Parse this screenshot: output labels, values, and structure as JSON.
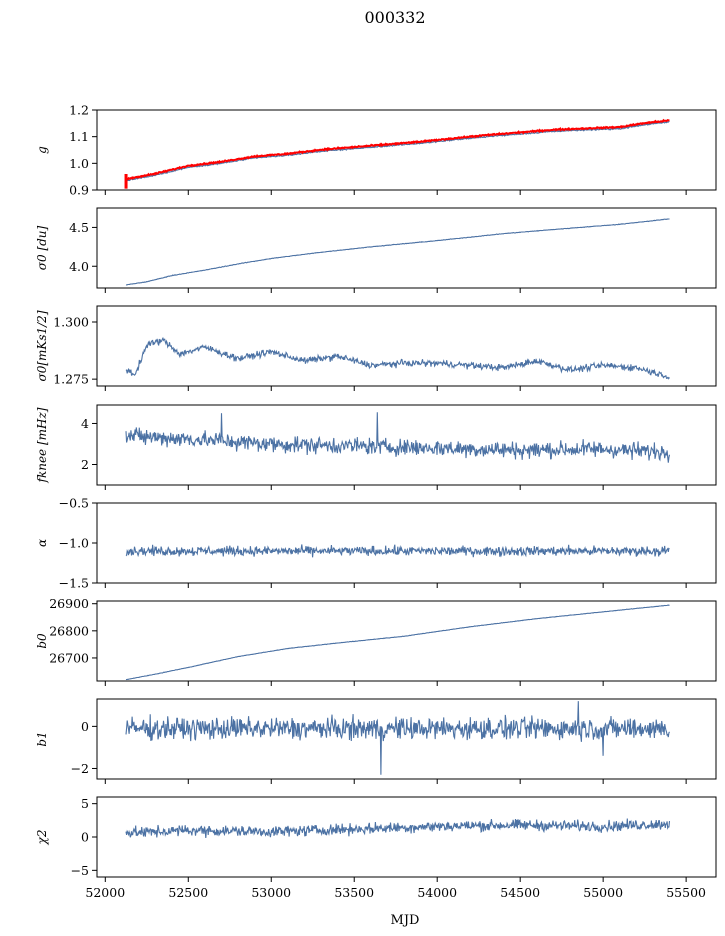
{
  "title": "000332",
  "chart_data": {
    "type": "line",
    "xlabel": "MJD",
    "xlim": [
      51950,
      55680
    ],
    "xticks": [
      52000,
      52500,
      53000,
      53500,
      54000,
      54500,
      55000,
      55500
    ],
    "xtick_labels": [
      "52000",
      "52500",
      "53000",
      "53500",
      "54000",
      "54500",
      "55000",
      "55500"
    ],
    "x_range": [
      52125,
      55400
    ],
    "colors": {
      "line": "#4c72a4",
      "overlay": "#ff0000"
    },
    "panels": [
      {
        "ylabel": "g",
        "ylim": [
          0.9,
          1.2
        ],
        "yticks": [
          0.9,
          1.0,
          1.1,
          1.2
        ],
        "ytick_labels": [
          "0.9",
          "1.0",
          "1.1",
          "1.2"
        ],
        "trend": [
          [
            52125,
            0.935
          ],
          [
            52300,
            0.955
          ],
          [
            52500,
            0.985
          ],
          [
            52700,
            1.0
          ],
          [
            52900,
            1.02
          ],
          [
            53100,
            1.03
          ],
          [
            53300,
            1.045
          ],
          [
            53500,
            1.055
          ],
          [
            53700,
            1.065
          ],
          [
            53900,
            1.075
          ],
          [
            54100,
            1.088
          ],
          [
            54300,
            1.1
          ],
          [
            54500,
            1.11
          ],
          [
            54700,
            1.12
          ],
          [
            54900,
            1.125
          ],
          [
            55100,
            1.13
          ],
          [
            55250,
            1.145
          ],
          [
            55400,
            1.155
          ]
        ],
        "noise": 0.002,
        "overlay": {
          "offset": 0.006,
          "spike": [
            52125,
            0.905,
            0.96
          ]
        }
      },
      {
        "ylabel": "σ0 [du]",
        "ylim": [
          3.72,
          4.75
        ],
        "yticks": [
          4.0,
          4.5
        ],
        "ytick_labels": [
          "4.0",
          "4.5"
        ],
        "trend": [
          [
            52125,
            3.76
          ],
          [
            52250,
            3.8
          ],
          [
            52400,
            3.88
          ],
          [
            52600,
            3.95
          ],
          [
            52800,
            4.03
          ],
          [
            53000,
            4.1
          ],
          [
            53300,
            4.18
          ],
          [
            53600,
            4.25
          ],
          [
            54000,
            4.33
          ],
          [
            54400,
            4.42
          ],
          [
            54800,
            4.49
          ],
          [
            55100,
            4.54
          ],
          [
            55400,
            4.61
          ]
        ],
        "noise": 0.003
      },
      {
        "ylabel": "σ0[mKs1/2]",
        "ylim": [
          1.272,
          1.307
        ],
        "yticks": [
          1.275,
          1.3
        ],
        "ytick_labels": [
          "1.275",
          "1.300"
        ],
        "trend": [
          [
            52125,
            1.279
          ],
          [
            52180,
            1.277
          ],
          [
            52250,
            1.29
          ],
          [
            52350,
            1.292
          ],
          [
            52450,
            1.286
          ],
          [
            52600,
            1.289
          ],
          [
            52800,
            1.284
          ],
          [
            53000,
            1.287
          ],
          [
            53200,
            1.283
          ],
          [
            53400,
            1.285
          ],
          [
            53600,
            1.281
          ],
          [
            53800,
            1.282
          ],
          [
            54000,
            1.282
          ],
          [
            54200,
            1.281
          ],
          [
            54400,
            1.28
          ],
          [
            54600,
            1.283
          ],
          [
            54800,
            1.279
          ],
          [
            55000,
            1.281
          ],
          [
            55200,
            1.28
          ],
          [
            55400,
            1.276
          ]
        ],
        "noise": 0.0012
      },
      {
        "ylabel": "fknee [mHz]",
        "ylim": [
          1.0,
          4.9
        ],
        "yticks": [
          2,
          4
        ],
        "ytick_labels": [
          "2",
          "4"
        ],
        "trend": [
          [
            52125,
            3.4
          ],
          [
            52600,
            3.2
          ],
          [
            53000,
            3.0
          ],
          [
            53500,
            2.9
          ],
          [
            54000,
            2.8
          ],
          [
            54500,
            2.7
          ],
          [
            55000,
            2.75
          ],
          [
            55400,
            2.6
          ]
        ],
        "noise": 0.35,
        "spikes": [
          [
            52700,
            4.5
          ],
          [
            53640,
            4.55
          ]
        ]
      },
      {
        "ylabel": "α",
        "ylim": [
          -1.5,
          -0.5
        ],
        "yticks": [
          -1.5,
          -1.0,
          -0.5
        ],
        "ytick_labels": [
          "−1.5",
          "−1.0",
          "−0.5"
        ],
        "trend": [
          [
            52125,
            -1.1
          ],
          [
            55400,
            -1.1
          ]
        ],
        "noise": 0.05
      },
      {
        "ylabel": "b0",
        "ylim": [
          26615,
          26910
        ],
        "yticks": [
          26700,
          26800,
          26900
        ],
        "ytick_labels": [
          "26700",
          "26800",
          "26900"
        ],
        "trend": [
          [
            52125,
            26620
          ],
          [
            52300,
            26640
          ],
          [
            52500,
            26665
          ],
          [
            52800,
            26705
          ],
          [
            53100,
            26735
          ],
          [
            53400,
            26755
          ],
          [
            53800,
            26780
          ],
          [
            54200,
            26815
          ],
          [
            54600,
            26845
          ],
          [
            55000,
            26870
          ],
          [
            55400,
            26895
          ]
        ],
        "noise": 0.6
      },
      {
        "ylabel": "b1",
        "ylim": [
          -2.5,
          1.3
        ],
        "yticks": [
          -2,
          0
        ],
        "ytick_labels": [
          "−2",
          "0"
        ],
        "trend": [
          [
            52125,
            -0.1
          ],
          [
            55400,
            -0.1
          ]
        ],
        "noise": 0.45,
        "spikes": [
          [
            53660,
            -2.3
          ],
          [
            55000,
            -1.4
          ],
          [
            54850,
            1.2
          ]
        ]
      },
      {
        "ylabel": "χ2",
        "ylim": [
          -6,
          6
        ],
        "yticks": [
          -5,
          0,
          5
        ],
        "ytick_labels": [
          "−5",
          "0",
          "5"
        ],
        "trend": [
          [
            52125,
            0.6
          ],
          [
            52500,
            1.0
          ],
          [
            53000,
            0.8
          ],
          [
            53500,
            1.2
          ],
          [
            54000,
            1.6
          ],
          [
            54500,
            1.8
          ],
          [
            55000,
            1.6
          ],
          [
            55400,
            2.0
          ]
        ],
        "noise": 0.7
      }
    ]
  }
}
